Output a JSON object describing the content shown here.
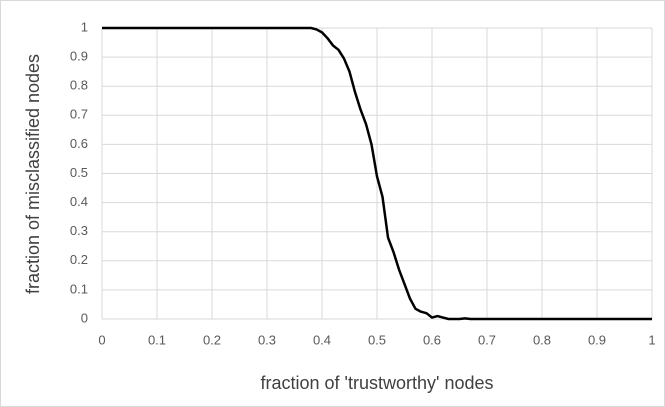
{
  "chart_data": {
    "type": "line",
    "x_label": "fraction of 'trustworthy' nodes",
    "y_label": "fraction of misclassified nodes",
    "x": [
      0,
      0.1,
      0.2,
      0.3,
      0.35,
      0.38,
      0.39,
      0.4,
      0.41,
      0.42,
      0.43,
      0.44,
      0.45,
      0.46,
      0.47,
      0.48,
      0.49,
      0.5,
      0.51,
      0.52,
      0.53,
      0.54,
      0.55,
      0.56,
      0.57,
      0.58,
      0.59,
      0.6,
      0.61,
      0.62,
      0.63,
      0.65,
      0.66,
      0.67,
      0.8,
      1
    ],
    "values": [
      1,
      1,
      1,
      1,
      1,
      1,
      0.995,
      0.985,
      0.965,
      0.94,
      0.925,
      0.895,
      0.85,
      0.78,
      0.72,
      0.67,
      0.6,
      0.49,
      0.42,
      0.28,
      0.23,
      0.17,
      0.12,
      0.07,
      0.035,
      0.025,
      0.02,
      0.005,
      0.01,
      0.005,
      0,
      0,
      0.002,
      0,
      0,
      0
    ],
    "color": "#000000",
    "xlim": [
      0,
      1
    ],
    "xticks": [
      0,
      0.1,
      0.2,
      0.3,
      0.4,
      0.5,
      0.6,
      0.7,
      0.8,
      0.9,
      1
    ],
    "ylim": [
      0,
      1
    ],
    "yticks": [
      0,
      0.1,
      0.2,
      0.3,
      0.4,
      0.5,
      0.6,
      0.7,
      0.8,
      0.9,
      1
    ],
    "grid": true
  }
}
